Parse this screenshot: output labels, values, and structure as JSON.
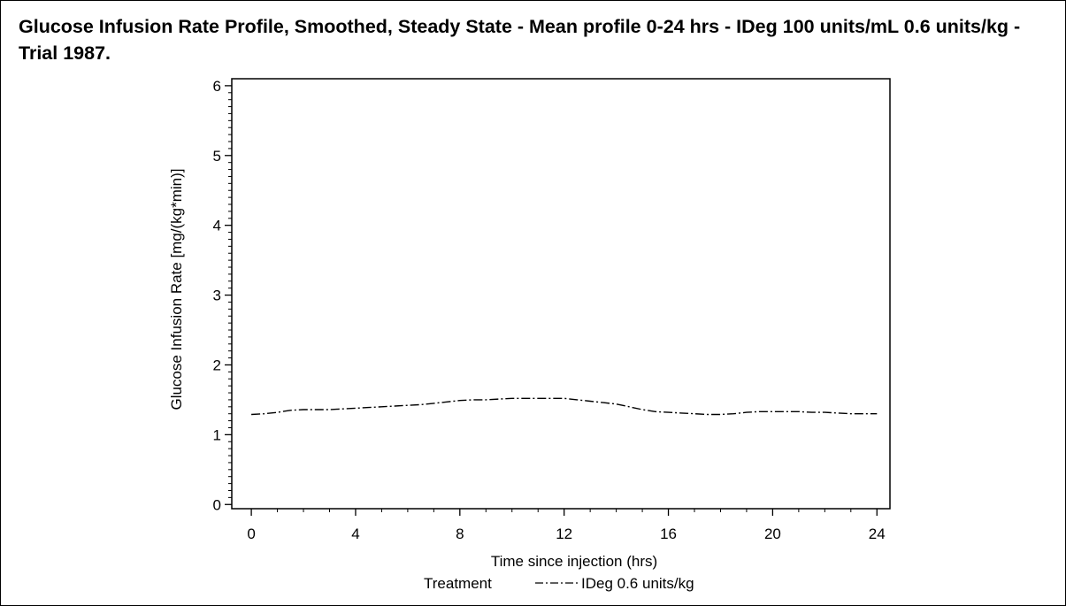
{
  "chart_data": {
    "type": "line",
    "title": "Glucose Infusion Rate Profile, Smoothed, Steady State - Mean profile 0-24 hrs - IDeg 100 units/mL 0.6 units/kg - Trial 1987.",
    "xlabel": "Time since injection (hrs)",
    "ylabel": "Glucose Infusion Rate [mg/(kg*min)]",
    "xlim": [
      -0.75,
      24.5
    ],
    "ylim": [
      -0.06,
      6.1
    ],
    "x_ticks": [
      0,
      4,
      8,
      12,
      16,
      20,
      24
    ],
    "y_ticks": [
      0,
      1,
      2,
      3,
      4,
      5,
      6
    ],
    "grid": false,
    "legend": {
      "title": "Treatment",
      "placement": "bottom-center"
    },
    "series": [
      {
        "name": "IDeg 0.6 units/kg",
        "line_style": "dash-dot",
        "color": "#000000",
        "x": [
          0,
          0.5,
          1,
          1.5,
          2,
          2.5,
          3,
          3.5,
          4,
          4.5,
          5,
          5.5,
          6,
          6.5,
          7,
          7.5,
          8,
          8.5,
          9,
          9.5,
          10,
          10.5,
          11,
          11.5,
          12,
          12.5,
          13,
          13.5,
          14,
          14.5,
          15,
          15.5,
          16,
          16.5,
          17,
          17.5,
          18,
          18.5,
          19,
          19.5,
          20,
          20.5,
          21,
          21.5,
          22,
          22.5,
          23,
          23.5,
          24
        ],
        "y": [
          1.29,
          1.3,
          1.32,
          1.35,
          1.36,
          1.36,
          1.36,
          1.37,
          1.38,
          1.39,
          1.4,
          1.41,
          1.42,
          1.43,
          1.45,
          1.47,
          1.49,
          1.5,
          1.5,
          1.51,
          1.52,
          1.52,
          1.52,
          1.52,
          1.52,
          1.5,
          1.48,
          1.46,
          1.44,
          1.4,
          1.36,
          1.33,
          1.32,
          1.31,
          1.3,
          1.29,
          1.29,
          1.3,
          1.32,
          1.33,
          1.33,
          1.33,
          1.33,
          1.32,
          1.32,
          1.31,
          1.3,
          1.3,
          1.3
        ]
      }
    ]
  }
}
